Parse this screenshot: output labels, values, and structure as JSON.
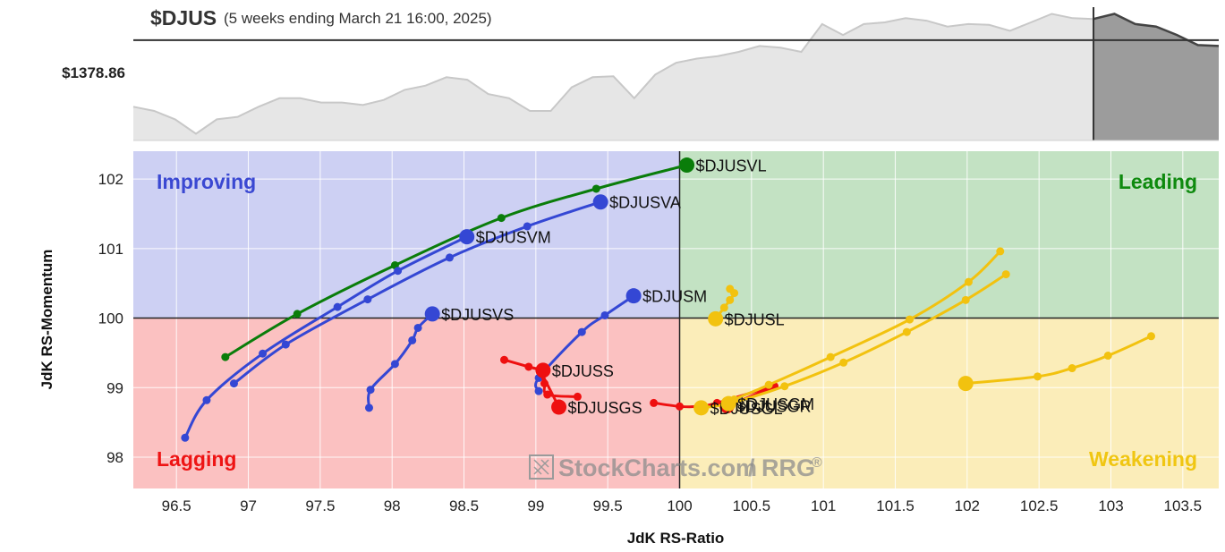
{
  "header": {
    "symbol": "$DJUS",
    "period": "(5 weeks ending March 21 16:00, 2025)",
    "price_label": "$1378.86"
  },
  "watermark": {
    "text": "StockCharts.com",
    "suffix": "/ RRG",
    "reg": "®"
  },
  "chart_data": [
    {
      "type": "area",
      "name": "$DJUS",
      "reference_level": 1378.86,
      "values": [
        1300,
        1295,
        1285,
        1268,
        1285,
        1288,
        1300,
        1310,
        1310,
        1305,
        1305,
        1302,
        1308,
        1320,
        1325,
        1335,
        1332,
        1315,
        1310,
        1295,
        1295,
        1323,
        1335,
        1336,
        1310,
        1338,
        1352,
        1357,
        1360,
        1365,
        1372,
        1370,
        1365,
        1398,
        1385,
        1398,
        1400,
        1405,
        1402,
        1395,
        1398,
        1397,
        1390,
        1400,
        1410,
        1405,
        1404,
        1410,
        1398,
        1395,
        1385,
        1373,
        1372
      ],
      "highlight_from_index": 46,
      "ylim": [
        1260,
        1418
      ]
    },
    {
      "type": "scatter",
      "xlabel": "JdK RS-Ratio",
      "ylabel": "JdK RS-Momentum",
      "xlim": [
        96.2,
        103.75
      ],
      "ylim": [
        97.55,
        102.4
      ],
      "x_ticks": [
        "96.5",
        "97",
        "97.5",
        "98",
        "98.5",
        "99",
        "99.5",
        "100",
        "100.5",
        "101",
        "101.5",
        "102",
        "102.5",
        "103",
        "103.5"
      ],
      "y_ticks": [
        "98",
        "99",
        "100",
        "101",
        "102"
      ],
      "center": [
        100,
        100
      ],
      "quadrants": [
        {
          "label": "Improving",
          "color": "#3a48d2",
          "bg": "#cdd0f3"
        },
        {
          "label": "Leading",
          "color": "#0e8a0e",
          "bg": "#c3e2c3"
        },
        {
          "label": "Lagging",
          "color": "#ee1414",
          "bg": "#fbc1c1"
        },
        {
          "label": "Weakening",
          "color": "#f0c612",
          "bg": "#fbedb9"
        }
      ],
      "series": [
        {
          "name": "$DJUSVL",
          "color": "#0a7d0a",
          "points": [
            [
              96.84,
              99.44
            ],
            [
              97.34,
              100.06
            ],
            [
              98.02,
              100.76
            ],
            [
              98.76,
              101.44
            ],
            [
              99.42,
              101.86
            ],
            [
              100.05,
              102.2
            ]
          ]
        },
        {
          "name": "$DJUSVA",
          "color": "#3447d4",
          "points": [
            [
              96.9,
              99.06
            ],
            [
              97.26,
              99.62
            ],
            [
              97.83,
              100.27
            ],
            [
              98.4,
              100.87
            ],
            [
              98.94,
              101.32
            ],
            [
              99.45,
              101.67
            ]
          ]
        },
        {
          "name": "$DJUSVM",
          "color": "#3447d4",
          "points": [
            [
              96.56,
              98.28
            ],
            [
              96.71,
              98.82
            ],
            [
              97.1,
              99.49
            ],
            [
              97.62,
              100.16
            ],
            [
              98.04,
              100.68
            ],
            [
              98.52,
              101.17
            ]
          ]
        },
        {
          "name": "$DJUSVS",
          "color": "#3447d4",
          "points": [
            [
              97.84,
              98.71
            ],
            [
              97.85,
              98.97
            ],
            [
              98.02,
              99.34
            ],
            [
              98.14,
              99.68
            ],
            [
              98.18,
              99.86
            ],
            [
              98.28,
              100.06
            ]
          ]
        },
        {
          "name": "$DJUSM",
          "color": "#3447d4",
          "points": [
            [
              99.02,
              98.95
            ],
            [
              99.02,
              99.14
            ],
            [
              99.32,
              99.8
            ],
            [
              99.48,
              100.04
            ],
            [
              99.68,
              100.32
            ]
          ]
        },
        {
          "name": "$DJUSS",
          "color": "#ee1010",
          "points": [
            [
              98.78,
              99.4
            ],
            [
              98.95,
              99.3
            ],
            [
              99.05,
              99.25
            ]
          ]
        },
        {
          "name": "$DJUSGS",
          "color": "#ee1010",
          "points": [
            [
              99.29,
              98.87
            ],
            [
              99.08,
              98.9
            ],
            [
              99.06,
              99.06
            ],
            [
              99.04,
              99.2
            ],
            [
              99.16,
              98.72
            ]
          ]
        },
        {
          "name": "$DJUSGR",
          "color": "#ee1010",
          "points": [
            [
              99.82,
              98.78
            ],
            [
              100.0,
              98.73
            ],
            [
              100.13,
              98.73
            ],
            [
              100.26,
              98.78
            ],
            [
              100.66,
              99.02
            ],
            [
              100.33,
              98.74
            ]
          ]
        },
        {
          "name": "$DJUSL",
          "color": "#f2c20f",
          "points": [
            [
              100.35,
              100.42
            ],
            [
              100.38,
              100.36
            ],
            [
              100.35,
              100.26
            ],
            [
              100.31,
              100.15
            ],
            [
              100.25,
              99.99
            ]
          ]
        },
        {
          "name": "$DJUSGL",
          "color": "#f2c20f",
          "points": [
            [
              102.27,
              100.63
            ],
            [
              101.99,
              100.26
            ],
            [
              101.58,
              99.8
            ],
            [
              101.14,
              99.36
            ],
            [
              100.73,
              99.02
            ],
            [
              100.34,
              98.77
            ],
            [
              100.15,
              98.71
            ]
          ]
        },
        {
          "name": "$DJUSGM",
          "color": "#f2c20f",
          "points": [
            [
              102.23,
              100.96
            ],
            [
              102.01,
              100.52
            ],
            [
              101.6,
              99.98
            ],
            [
              101.05,
              99.44
            ],
            [
              100.62,
              99.04
            ],
            [
              100.38,
              98.83
            ],
            [
              100.34,
              98.77
            ]
          ]
        },
        {
          "name": "$DJUSGM_tail",
          "color": "#f2c20f",
          "points": [
            [
              103.28,
              99.74
            ],
            [
              102.98,
              99.46
            ],
            [
              102.73,
              99.28
            ],
            [
              102.49,
              99.16
            ],
            [
              101.99,
              99.06
            ]
          ]
        }
      ]
    }
  ]
}
